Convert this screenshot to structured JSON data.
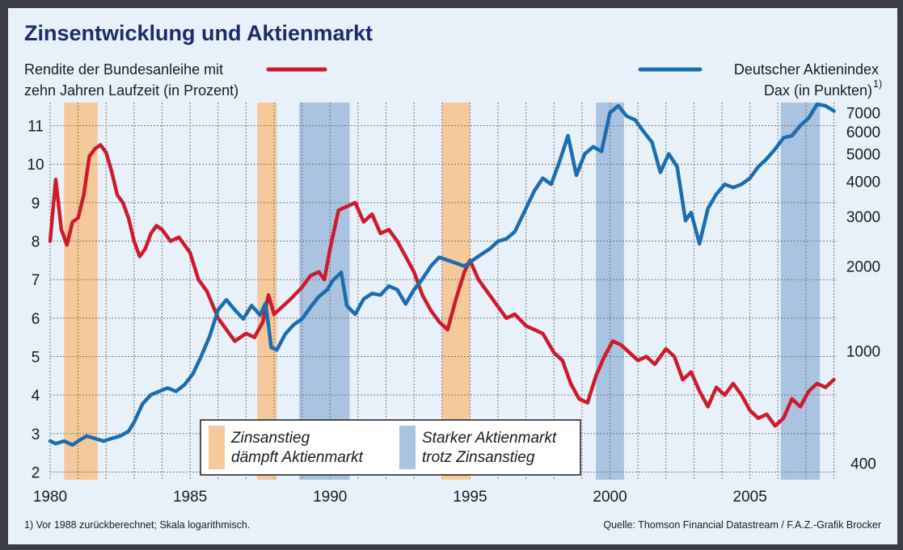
{
  "chart_data": {
    "type": "line",
    "title": "Zinsentwicklung und Aktienmarkt",
    "left_axis_label": [
      "Rendite der Bundesanleihe mit",
      "zehn Jahren Laufzeit (in Prozent)"
    ],
    "right_axis_label": [
      "Deutscher Aktienindex",
      "Dax (in Punkten)"
    ],
    "right_axis_footnote_mark": "1)",
    "x_ticks": [
      "1980",
      "1985",
      "1990",
      "1995",
      "2000",
      "2005"
    ],
    "xlim": [
      1980,
      2008.1
    ],
    "left_ticks": [
      "2",
      "3",
      "4",
      "5",
      "6",
      "7",
      "8",
      "9",
      "10",
      "11"
    ],
    "left_ylim": [
      1.8,
      11.6
    ],
    "right_ticks": [
      "400",
      "1000",
      "2000",
      "3000",
      "4000",
      "5000",
      "6000",
      "7000"
    ],
    "right_ylim": [
      350,
      7600
    ],
    "right_scale": "log",
    "grid": true,
    "colors": {
      "bund": "#cc1b2c",
      "dax": "#1b6db0",
      "orange_band": "#f5c99a",
      "blue_band": "#a9c3e0",
      "title": "#1d2a6b"
    },
    "series": [
      {
        "name": "Rendite der Bundesanleihe",
        "axis": "left",
        "color": "#cc1b2c",
        "points": [
          [
            1980,
            8.0
          ],
          [
            1980.2,
            9.6
          ],
          [
            1980.4,
            8.3
          ],
          [
            1980.6,
            7.9
          ],
          [
            1980.8,
            8.5
          ],
          [
            1981.0,
            8.6
          ],
          [
            1981.2,
            9.2
          ],
          [
            1981.4,
            10.2
          ],
          [
            1981.6,
            10.4
          ],
          [
            1981.8,
            10.5
          ],
          [
            1982.0,
            10.3
          ],
          [
            1982.2,
            9.8
          ],
          [
            1982.4,
            9.2
          ],
          [
            1982.6,
            9.0
          ],
          [
            1982.8,
            8.6
          ],
          [
            1983.0,
            8.0
          ],
          [
            1983.2,
            7.6
          ],
          [
            1983.4,
            7.8
          ],
          [
            1983.6,
            8.2
          ],
          [
            1983.8,
            8.4
          ],
          [
            1984.0,
            8.3
          ],
          [
            1984.3,
            8.0
          ],
          [
            1984.6,
            8.1
          ],
          [
            1985.0,
            7.7
          ],
          [
            1985.3,
            7.0
          ],
          [
            1985.6,
            6.7
          ],
          [
            1986.0,
            6.0
          ],
          [
            1986.3,
            5.7
          ],
          [
            1986.6,
            5.4
          ],
          [
            1987.0,
            5.6
          ],
          [
            1987.3,
            5.5
          ],
          [
            1987.6,
            5.9
          ],
          [
            1987.8,
            6.6
          ],
          [
            1988.0,
            6.1
          ],
          [
            1988.3,
            6.3
          ],
          [
            1988.6,
            6.5
          ],
          [
            1989.0,
            6.8
          ],
          [
            1989.3,
            7.1
          ],
          [
            1989.6,
            7.2
          ],
          [
            1989.8,
            7.0
          ],
          [
            1990.0,
            7.8
          ],
          [
            1990.3,
            8.8
          ],
          [
            1990.6,
            8.9
          ],
          [
            1990.9,
            9.0
          ],
          [
            1991.2,
            8.5
          ],
          [
            1991.5,
            8.7
          ],
          [
            1991.8,
            8.2
          ],
          [
            1992.1,
            8.3
          ],
          [
            1992.4,
            8.0
          ],
          [
            1992.7,
            7.6
          ],
          [
            1993.0,
            7.2
          ],
          [
            1993.3,
            6.6
          ],
          [
            1993.6,
            6.2
          ],
          [
            1993.9,
            5.9
          ],
          [
            1994.2,
            5.7
          ],
          [
            1994.5,
            6.5
          ],
          [
            1994.8,
            7.2
          ],
          [
            1995.0,
            7.5
          ],
          [
            1995.3,
            7.0
          ],
          [
            1995.6,
            6.7
          ],
          [
            1996.0,
            6.3
          ],
          [
            1996.3,
            6.0
          ],
          [
            1996.6,
            6.1
          ],
          [
            1997.0,
            5.8
          ],
          [
            1997.3,
            5.7
          ],
          [
            1997.6,
            5.6
          ],
          [
            1998.0,
            5.1
          ],
          [
            1998.3,
            4.9
          ],
          [
            1998.6,
            4.3
          ],
          [
            1998.9,
            3.9
          ],
          [
            1999.2,
            3.8
          ],
          [
            1999.5,
            4.5
          ],
          [
            1999.8,
            5.0
          ],
          [
            2000.1,
            5.4
          ],
          [
            2000.4,
            5.3
          ],
          [
            2000.7,
            5.1
          ],
          [
            2001.0,
            4.9
          ],
          [
            2001.3,
            5.0
          ],
          [
            2001.6,
            4.8
          ],
          [
            2002.0,
            5.2
          ],
          [
            2002.3,
            5.0
          ],
          [
            2002.6,
            4.4
          ],
          [
            2002.9,
            4.6
          ],
          [
            2003.2,
            4.1
          ],
          [
            2003.5,
            3.7
          ],
          [
            2003.8,
            4.2
          ],
          [
            2004.1,
            4.0
          ],
          [
            2004.4,
            4.3
          ],
          [
            2004.7,
            4.0
          ],
          [
            2005.0,
            3.6
          ],
          [
            2005.3,
            3.4
          ],
          [
            2005.6,
            3.5
          ],
          [
            2005.9,
            3.2
          ],
          [
            2006.2,
            3.4
          ],
          [
            2006.5,
            3.9
          ],
          [
            2006.8,
            3.7
          ],
          [
            2007.1,
            4.1
          ],
          [
            2007.4,
            4.3
          ],
          [
            2007.7,
            4.2
          ],
          [
            2008.0,
            4.4
          ]
        ]
      },
      {
        "name": "Deutscher Aktienindex (Dax)",
        "axis": "right",
        "color": "#1b6db0",
        "points": [
          [
            1980,
            480
          ],
          [
            1980.2,
            470
          ],
          [
            1980.5,
            480
          ],
          [
            1980.8,
            465
          ],
          [
            1981.0,
            480
          ],
          [
            1981.3,
            500
          ],
          [
            1981.6,
            490
          ],
          [
            1981.9,
            480
          ],
          [
            1982.2,
            490
          ],
          [
            1982.5,
            500
          ],
          [
            1982.8,
            520
          ],
          [
            1983.0,
            560
          ],
          [
            1983.3,
            650
          ],
          [
            1983.6,
            700
          ],
          [
            1983.9,
            720
          ],
          [
            1984.2,
            740
          ],
          [
            1984.5,
            720
          ],
          [
            1984.8,
            760
          ],
          [
            1985.1,
            830
          ],
          [
            1985.4,
            960
          ],
          [
            1985.7,
            1130
          ],
          [
            1986.0,
            1400
          ],
          [
            1986.3,
            1520
          ],
          [
            1986.6,
            1400
          ],
          [
            1986.9,
            1300
          ],
          [
            1987.2,
            1450
          ],
          [
            1987.5,
            1340
          ],
          [
            1987.7,
            1480
          ],
          [
            1987.9,
            1030
          ],
          [
            1988.1,
            1010
          ],
          [
            1988.4,
            1150
          ],
          [
            1988.7,
            1240
          ],
          [
            1989.0,
            1300
          ],
          [
            1989.3,
            1430
          ],
          [
            1989.6,
            1560
          ],
          [
            1989.9,
            1650
          ],
          [
            1990.1,
            1780
          ],
          [
            1990.4,
            1900
          ],
          [
            1990.6,
            1450
          ],
          [
            1990.9,
            1350
          ],
          [
            1991.2,
            1530
          ],
          [
            1991.5,
            1600
          ],
          [
            1991.8,
            1580
          ],
          [
            1992.1,
            1700
          ],
          [
            1992.4,
            1650
          ],
          [
            1992.7,
            1470
          ],
          [
            1993.0,
            1650
          ],
          [
            1993.3,
            1800
          ],
          [
            1993.6,
            2000
          ],
          [
            1993.9,
            2150
          ],
          [
            1994.2,
            2100
          ],
          [
            1994.5,
            2050
          ],
          [
            1994.8,
            2000
          ],
          [
            1995.1,
            2100
          ],
          [
            1995.4,
            2200
          ],
          [
            1995.7,
            2300
          ],
          [
            1996.0,
            2450
          ],
          [
            1996.3,
            2500
          ],
          [
            1996.6,
            2650
          ],
          [
            1997.0,
            3200
          ],
          [
            1997.3,
            3700
          ],
          [
            1997.6,
            4100
          ],
          [
            1997.9,
            3900
          ],
          [
            1998.2,
            4700
          ],
          [
            1998.5,
            5800
          ],
          [
            1998.8,
            4200
          ],
          [
            1999.1,
            5000
          ],
          [
            1999.4,
            5300
          ],
          [
            1999.7,
            5100
          ],
          [
            2000.0,
            7000
          ],
          [
            2000.3,
            7400
          ],
          [
            2000.6,
            6800
          ],
          [
            2000.9,
            6600
          ],
          [
            2001.2,
            6000
          ],
          [
            2001.5,
            5500
          ],
          [
            2001.8,
            4300
          ],
          [
            2002.1,
            5000
          ],
          [
            2002.4,
            4500
          ],
          [
            2002.7,
            2900
          ],
          [
            2002.9,
            3100
          ],
          [
            2003.2,
            2400
          ],
          [
            2003.5,
            3200
          ],
          [
            2003.8,
            3600
          ],
          [
            2004.1,
            3900
          ],
          [
            2004.4,
            3800
          ],
          [
            2004.7,
            3900
          ],
          [
            2005.0,
            4100
          ],
          [
            2005.3,
            4500
          ],
          [
            2005.6,
            4800
          ],
          [
            2005.9,
            5200
          ],
          [
            2006.2,
            5700
          ],
          [
            2006.5,
            5800
          ],
          [
            2006.8,
            6300
          ],
          [
            2007.1,
            6700
          ],
          [
            2007.4,
            7500
          ],
          [
            2007.7,
            7400
          ],
          [
            2008.0,
            7100
          ]
        ]
      }
    ],
    "bands": [
      {
        "type": "orange",
        "from": 1980.5,
        "to": 1981.7
      },
      {
        "type": "orange",
        "from": 1987.4,
        "to": 1988.1
      },
      {
        "type": "orange",
        "from": 1994.0,
        "to": 1995.0
      },
      {
        "type": "blue",
        "from": 1988.9,
        "to": 1990.7
      },
      {
        "type": "blue",
        "from": 1999.5,
        "to": 2000.5
      },
      {
        "type": "blue",
        "from": 2006.1,
        "to": 2007.5
      }
    ],
    "legend": [
      {
        "type": "orange",
        "text": [
          "Zinsanstieg",
          "dämpft Aktienmarkt"
        ]
      },
      {
        "type": "blue",
        "text": [
          "Starker Aktienmarkt",
          "trotz Zinsanstieg"
        ]
      }
    ],
    "footnote": "1) Vor 1988 zurückberechnet; Skala logarithmisch.",
    "source": "Quelle: Thomson Financial Datastream / F.A.Z.-Grafik Brocker"
  }
}
